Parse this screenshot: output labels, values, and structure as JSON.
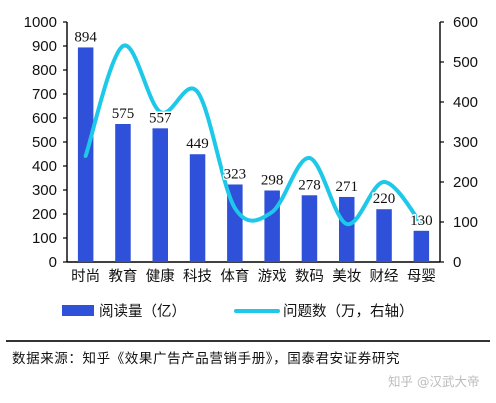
{
  "chart_data": {
    "type": "bar+line",
    "categories": [
      "时尚",
      "教育",
      "健康",
      "科技",
      "体育",
      "游戏",
      "数码",
      "美妆",
      "财经",
      "母婴"
    ],
    "series": [
      {
        "name": "阅读量（亿）",
        "type": "bar",
        "axis": "left",
        "color": "#2f50d8",
        "values": [
          894,
          575,
          557,
          449,
          323,
          298,
          278,
          271,
          220,
          130
        ]
      },
      {
        "name": "问题数（万，右轴）",
        "type": "line",
        "axis": "right",
        "smooth": true,
        "color": "#1ec8e8",
        "values": [
          265,
          540,
          375,
          425,
          135,
          125,
          260,
          95,
          200,
          95
        ]
      }
    ],
    "ylim_left": [
      0,
      1000
    ],
    "yticks_left": [
      0,
      100,
      200,
      300,
      400,
      500,
      600,
      700,
      800,
      900,
      1000
    ],
    "ylim_right": [
      0,
      600
    ],
    "yticks_right": [
      0,
      100,
      200,
      300,
      400,
      500,
      600
    ],
    "data_labels": [
      "894",
      "575",
      "557",
      "449",
      "323",
      "298",
      "278",
      "271",
      "220",
      "130"
    ],
    "legend_position": "bottom",
    "grid": false
  },
  "source": "数据来源：知乎《效果广告产品营销手册》，国泰君安证券研究",
  "watermark": "知乎 @汉武大帝"
}
